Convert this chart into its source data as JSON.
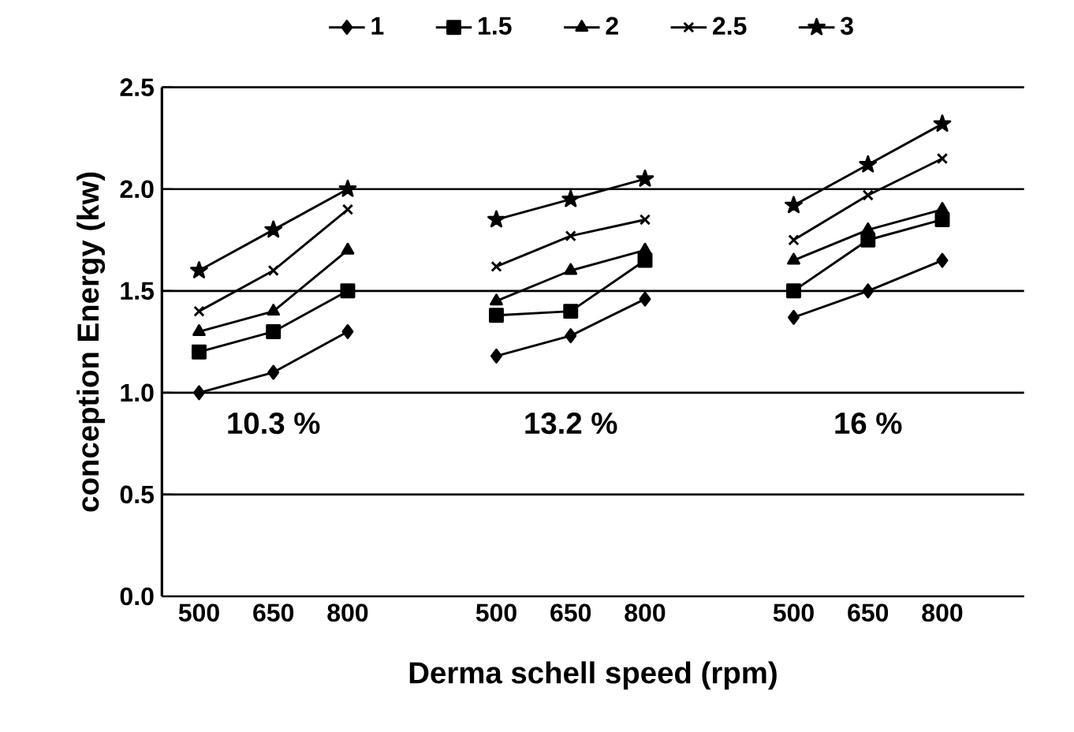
{
  "chart_data": {
    "type": "line",
    "xlabel": "Derma schell speed (rpm)",
    "ylabel": "conception Energy (kw)",
    "categories": [
      "500",
      "650",
      "800",
      null,
      "500",
      "650",
      "800",
      null,
      "500",
      "650",
      "800"
    ],
    "series": [
      {
        "name": "1",
        "color": "#000000",
        "marker": "diamond",
        "values": [
          1.0,
          1.1,
          1.3,
          null,
          1.18,
          1.28,
          1.46,
          null,
          1.37,
          1.5,
          1.65
        ]
      },
      {
        "name": "1.5",
        "color": "#000000",
        "marker": "square",
        "values": [
          1.2,
          1.3,
          1.5,
          null,
          1.38,
          1.4,
          1.65,
          null,
          1.5,
          1.75,
          1.85
        ]
      },
      {
        "name": "2",
        "color": "#000000",
        "marker": "triangle",
        "values": [
          1.3,
          1.4,
          1.7,
          null,
          1.45,
          1.6,
          1.7,
          null,
          1.65,
          1.8,
          1.9
        ]
      },
      {
        "name": "2.5",
        "color": "#000000",
        "marker": "cross",
        "values": [
          1.4,
          1.6,
          1.9,
          null,
          1.62,
          1.77,
          1.85,
          null,
          1.75,
          1.97,
          2.15
        ]
      },
      {
        "name": "3",
        "color": "#000000",
        "marker": "star",
        "values": [
          1.6,
          1.8,
          2.0,
          null,
          1.85,
          1.95,
          2.05,
          null,
          1.92,
          2.12,
          2.32
        ]
      }
    ],
    "annotations": [
      "10.3 %",
      "13.2 %",
      "16 %"
    ],
    "ylim": [
      0,
      2.5
    ],
    "yticks": [
      {
        "value": 0,
        "label": "0.0"
      },
      {
        "value": 0.5,
        "label": "0.5"
      },
      {
        "value": 1,
        "label": "1.0"
      },
      {
        "value": 1.5,
        "label": "1.5"
      },
      {
        "value": 2,
        "label": "2.0"
      },
      {
        "value": 2.5,
        "label": "2.5"
      }
    ],
    "grid": "y",
    "legend": "top",
    "line_style": "solid"
  }
}
